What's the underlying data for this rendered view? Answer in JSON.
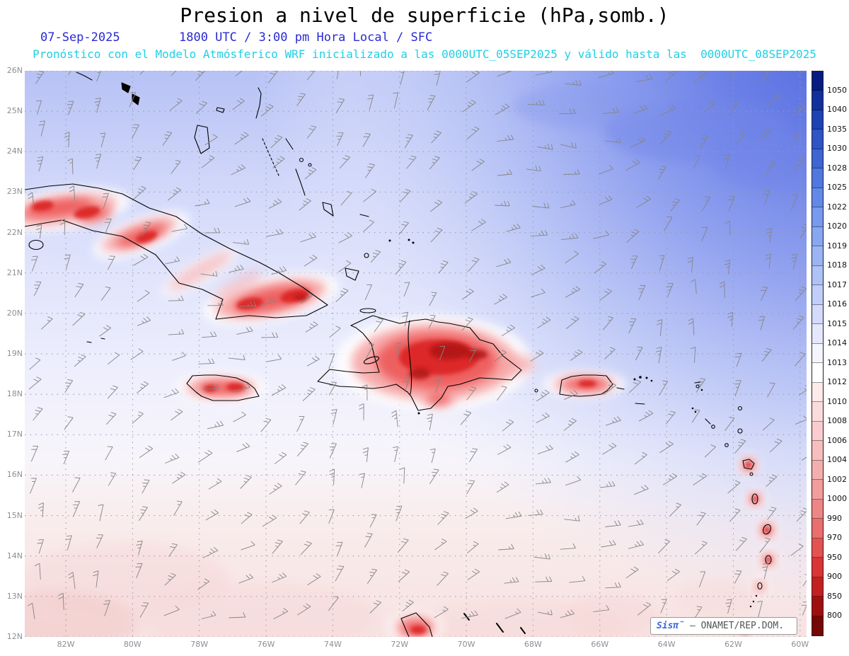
{
  "header": {
    "title": "Presion a nivel de superficie (hPa,somb.)",
    "date": "07-Sep-2025",
    "time_line": "1800 UTC / 3:00 pm Hora Local / SFC",
    "forecast_line": "Pronóstico con el Modelo Atmósferico WRF inicializado a las 0000UTC_05SEP2025 y válido hasta las  0000UTC_08SEP2025"
  },
  "map": {
    "lat_labels": [
      "26N",
      "25N",
      "24N",
      "23N",
      "22N",
      "21N",
      "20N",
      "19N",
      "18N",
      "17N",
      "16N",
      "15N",
      "14N",
      "13N",
      "12N"
    ],
    "lon_labels": [
      "82W",
      "80W",
      "78W",
      "76W",
      "74W",
      "72W",
      "70W",
      "68W",
      "66W",
      "64W",
      "62W",
      "60W"
    ]
  },
  "colorbar": {
    "tick_values": [
      "1050",
      "1040",
      "1035",
      "1030",
      "1028",
      "1025",
      "1022",
      "1020",
      "1019",
      "1018",
      "1017",
      "1016",
      "1015",
      "1014",
      "1013",
      "1012",
      "1010",
      "1008",
      "1006",
      "1004",
      "1002",
      "1000",
      "990",
      "970",
      "950",
      "900",
      "850",
      "800"
    ],
    "cell_colors": [
      "#061c80",
      "#11309b",
      "#1f42b2",
      "#2e54c5",
      "#3d66d4",
      "#5078df",
      "#6389e8",
      "#7799ee",
      "#89a7f1",
      "#9bb5f4",
      "#aec2f6",
      "#c1cef8",
      "#d4dafa",
      "#e5e8fc",
      "#f5f5fe",
      "#ffffff",
      "#fdeaea",
      "#fbdcdc",
      "#f9cdcd",
      "#f7bebe",
      "#f5aeae",
      "#f29c9c",
      "#ee8686",
      "#ea6e6e",
      "#e45252",
      "#db3434",
      "#c41f1f",
      "#a00f0f",
      "#750707"
    ]
  },
  "watermark": {
    "brand": "Sisπ̃",
    "text": "– ONAMET/REP.DOM."
  },
  "colors": {
    "title_text": "#000000",
    "date_text": "#2a2ad2",
    "forecast_text": "#1fd0e6",
    "axis_label": "#8d8d97",
    "grid_dots": "#9a9aa6",
    "wind_barb": "#858585",
    "coastline": "#000000",
    "terrain_red_light": "#f7a8a8",
    "terrain_red_mid": "#ee5c5c",
    "terrain_red_core": "#dc2626",
    "terrain_red_dark": "#b01212",
    "island_halo": "#ffffff",
    "south_pink": "#f7d8d8",
    "south_pink_deep": "#f3caca",
    "high_blue_boost": "#7286e9",
    "high_blue_boost2": "#8496ec",
    "watermark_brand": "#3a66d9",
    "watermark_text": "#555555"
  }
}
